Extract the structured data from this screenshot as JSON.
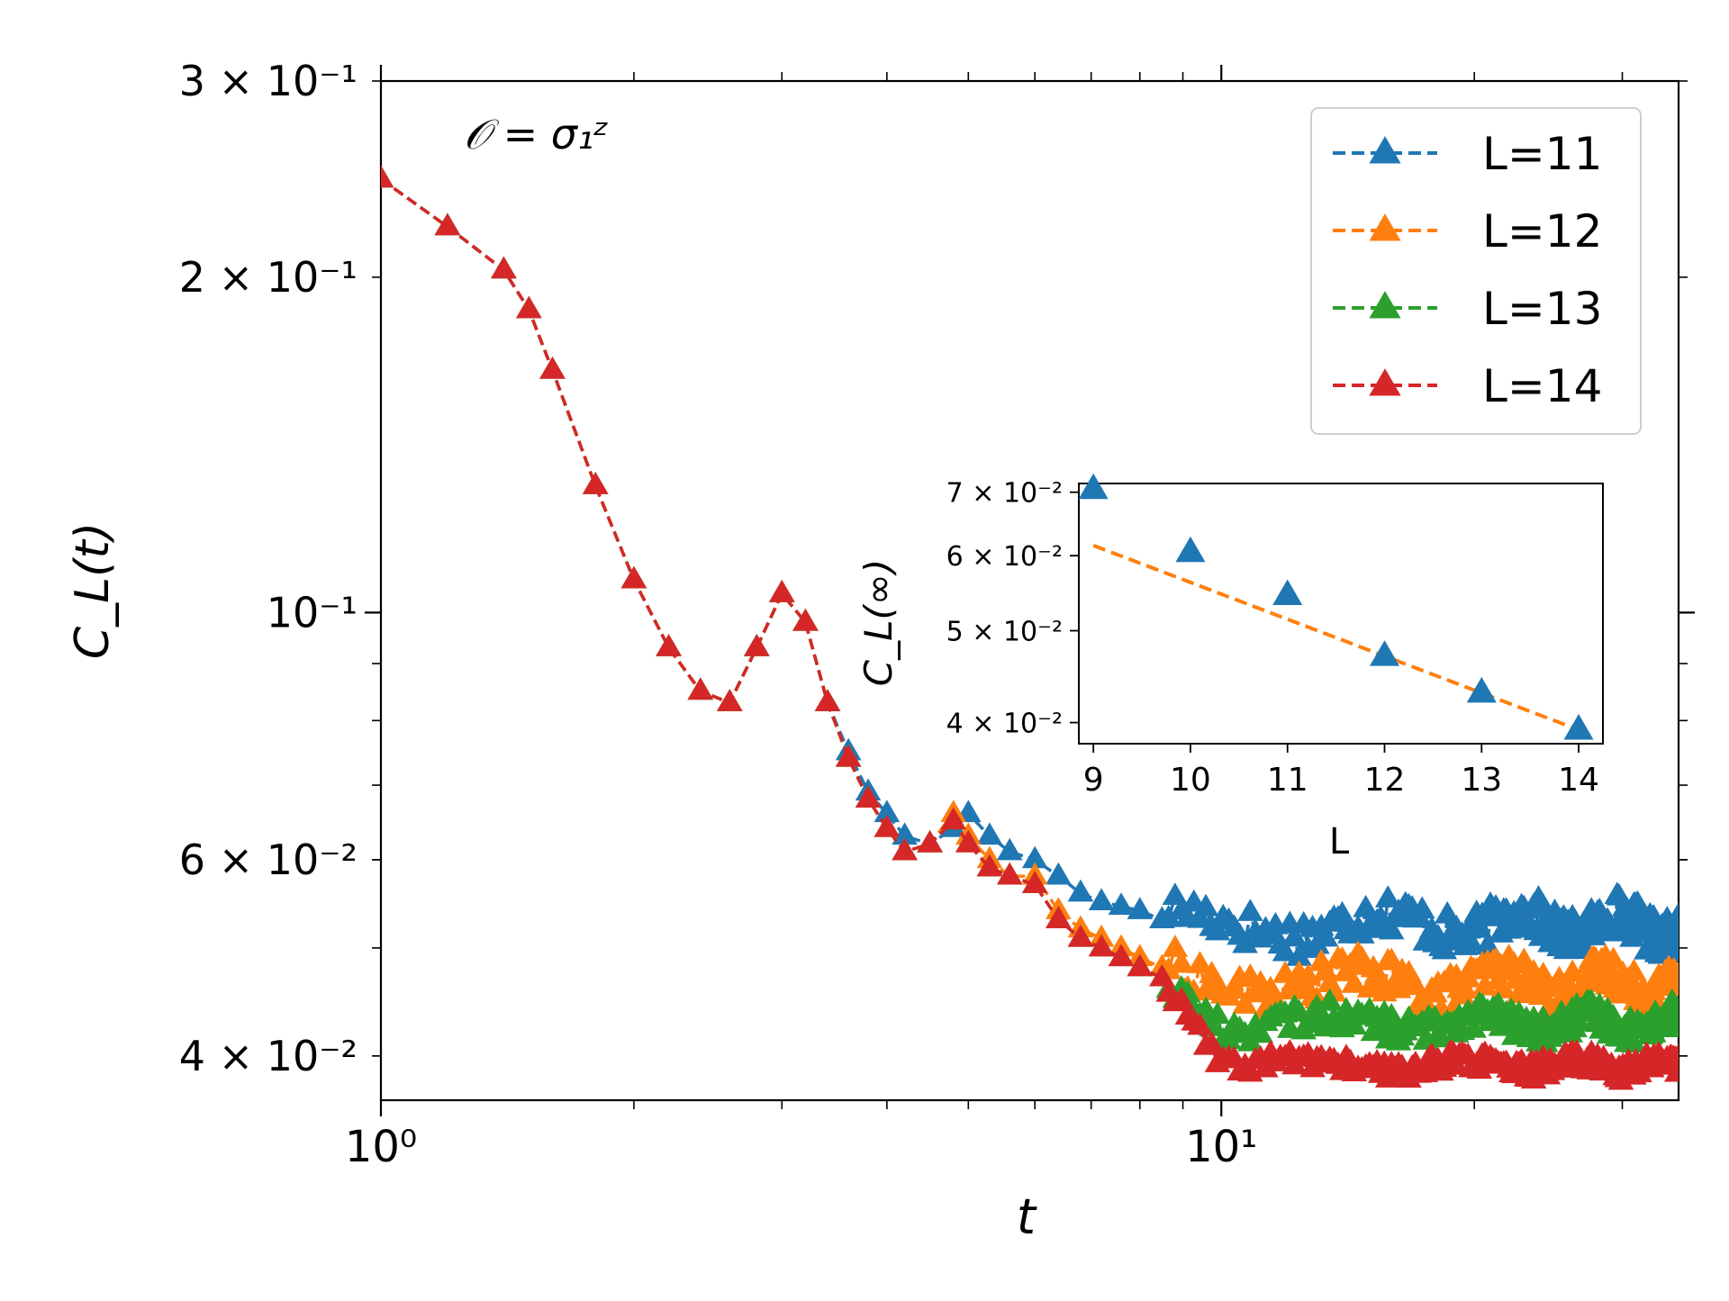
{
  "chart_data": [
    {
      "type": "line",
      "title": "",
      "annotation": "𝒪 = σ₁ᶻ",
      "xlabel": "t",
      "ylabel": "C_L(t)",
      "xscale": "log",
      "yscale": "log",
      "xlim": [
        1,
        35
      ],
      "ylim": [
        0.0365,
        0.3
      ],
      "xticks": [
        {
          "value": 1,
          "label": "10⁰"
        },
        {
          "value": 10,
          "label": "10¹"
        }
      ],
      "yticks": [
        {
          "value": 0.3,
          "label": "3 × 10⁻¹"
        },
        {
          "value": 0.2,
          "label": "2 × 10⁻¹"
        },
        {
          "value": 0.1,
          "label": "10⁻¹"
        },
        {
          "value": 0.06,
          "label": "6 × 10⁻²"
        },
        {
          "value": 0.04,
          "label": "4 × 10⁻²"
        }
      ],
      "legend_position": "top-right",
      "series": [
        {
          "name": "L=11",
          "color": "#1f77b4",
          "marker": "triangle",
          "linestyle": "dashed",
          "early": [
            [
              1.0,
              0.245
            ],
            [
              1.2,
              0.222
            ],
            [
              1.4,
              0.203
            ],
            [
              1.5,
              0.187
            ],
            [
              1.6,
              0.165
            ],
            [
              1.8,
              0.13
            ],
            [
              2.0,
              0.107
            ],
            [
              2.2,
              0.093
            ],
            [
              2.4,
              0.085
            ],
            [
              2.6,
              0.083
            ],
            [
              2.8,
              0.093
            ],
            [
              3.0,
              0.104
            ],
            [
              3.2,
              0.098
            ],
            [
              3.4,
              0.083
            ],
            [
              3.6,
              0.075
            ],
            [
              3.8,
              0.069
            ],
            [
              4.0,
              0.066
            ],
            [
              4.2,
              0.063
            ],
            [
              4.5,
              0.062
            ],
            [
              4.8,
              0.064
            ],
            [
              5.0,
              0.066
            ],
            [
              5.3,
              0.063
            ],
            [
              5.6,
              0.061
            ],
            [
              6.0,
              0.06
            ],
            [
              6.4,
              0.058
            ],
            [
              6.8,
              0.056
            ],
            [
              7.2,
              0.055
            ],
            [
              7.6,
              0.0545
            ],
            [
              8.0,
              0.054
            ],
            [
              8.5,
              0.053
            ]
          ],
          "steady": {
            "level": 0.0525,
            "amplitude": 0.0022
          }
        },
        {
          "name": "L=12",
          "color": "#ff7f0e",
          "marker": "triangle",
          "linestyle": "dashed",
          "early": [
            [
              1.0,
              0.245
            ],
            [
              1.2,
              0.222
            ],
            [
              1.4,
              0.203
            ],
            [
              1.5,
              0.187
            ],
            [
              1.6,
              0.165
            ],
            [
              1.8,
              0.13
            ],
            [
              2.0,
              0.107
            ],
            [
              2.2,
              0.093
            ],
            [
              2.4,
              0.085
            ],
            [
              2.6,
              0.083
            ],
            [
              2.8,
              0.093
            ],
            [
              3.0,
              0.104
            ],
            [
              3.2,
              0.098
            ],
            [
              3.4,
              0.083
            ],
            [
              3.6,
              0.074
            ],
            [
              3.8,
              0.068
            ],
            [
              4.0,
              0.064
            ],
            [
              4.2,
              0.061
            ],
            [
              4.5,
              0.062
            ],
            [
              4.8,
              0.066
            ],
            [
              5.0,
              0.063
            ],
            [
              5.3,
              0.06
            ],
            [
              5.6,
              0.058
            ],
            [
              6.0,
              0.058
            ],
            [
              6.4,
              0.054
            ],
            [
              6.8,
              0.052
            ],
            [
              7.2,
              0.051
            ],
            [
              7.6,
              0.05
            ],
            [
              8.0,
              0.049
            ],
            [
              8.5,
              0.048
            ]
          ],
          "steady": {
            "level": 0.0465,
            "amplitude": 0.0018
          }
        },
        {
          "name": "L=13",
          "color": "#2ca02c",
          "marker": "triangle",
          "linestyle": "dashed",
          "early": [
            [
              1.0,
              0.245
            ],
            [
              1.2,
              0.222
            ],
            [
              1.4,
              0.203
            ],
            [
              1.5,
              0.187
            ],
            [
              1.6,
              0.165
            ],
            [
              1.8,
              0.13
            ],
            [
              2.0,
              0.107
            ],
            [
              2.2,
              0.093
            ],
            [
              2.4,
              0.085
            ],
            [
              2.6,
              0.083
            ],
            [
              2.8,
              0.093
            ],
            [
              3.0,
              0.104
            ],
            [
              3.2,
              0.098
            ],
            [
              3.4,
              0.083
            ],
            [
              3.6,
              0.074
            ],
            [
              3.8,
              0.068
            ],
            [
              4.0,
              0.064
            ],
            [
              4.2,
              0.061
            ],
            [
              4.5,
              0.062
            ],
            [
              4.8,
              0.065
            ],
            [
              5.0,
              0.062
            ],
            [
              5.3,
              0.059
            ],
            [
              5.6,
              0.058
            ],
            [
              6.0,
              0.057
            ],
            [
              6.4,
              0.053
            ],
            [
              6.8,
              0.051
            ],
            [
              7.2,
              0.05
            ],
            [
              7.6,
              0.049
            ],
            [
              8.0,
              0.048
            ],
            [
              8.5,
              0.047
            ]
          ],
          "steady": {
            "level": 0.0428,
            "amplitude": 0.0012
          }
        },
        {
          "name": "L=14",
          "color": "#d62728",
          "marker": "triangle",
          "linestyle": "dashed",
          "early": [
            [
              1.0,
              0.245
            ],
            [
              1.2,
              0.222
            ],
            [
              1.4,
              0.203
            ],
            [
              1.5,
              0.187
            ],
            [
              1.6,
              0.165
            ],
            [
              1.8,
              0.13
            ],
            [
              2.0,
              0.107
            ],
            [
              2.2,
              0.093
            ],
            [
              2.4,
              0.085
            ],
            [
              2.6,
              0.083
            ],
            [
              2.8,
              0.093
            ],
            [
              3.0,
              0.104
            ],
            [
              3.2,
              0.098
            ],
            [
              3.4,
              0.083
            ],
            [
              3.6,
              0.074
            ],
            [
              3.8,
              0.068
            ],
            [
              4.0,
              0.064
            ],
            [
              4.2,
              0.061
            ],
            [
              4.5,
              0.062
            ],
            [
              4.8,
              0.065
            ],
            [
              5.0,
              0.062
            ],
            [
              5.3,
              0.059
            ],
            [
              5.6,
              0.058
            ],
            [
              6.0,
              0.057
            ],
            [
              6.4,
              0.053
            ],
            [
              6.8,
              0.051
            ],
            [
              7.2,
              0.05
            ],
            [
              7.6,
              0.049
            ],
            [
              8.0,
              0.048
            ],
            [
              8.5,
              0.047
            ]
          ],
          "steady": {
            "level": 0.0392,
            "amplitude": 0.0008
          }
        }
      ]
    },
    {
      "type": "scatter",
      "title": "",
      "xlabel": "L",
      "ylabel": "C_L(∞)",
      "yscale": "log",
      "xlim": [
        8.85,
        14.25
      ],
      "ylim": [
        0.038,
        0.0715
      ],
      "xticks": [
        "9",
        "10",
        "11",
        "12",
        "13",
        "14"
      ],
      "yticks": [
        {
          "value": 0.07,
          "label": "7 × 10⁻²"
        },
        {
          "value": 0.06,
          "label": "6 × 10⁻²"
        },
        {
          "value": 0.05,
          "label": "5 × 10⁻²"
        },
        {
          "value": 0.04,
          "label": "4 × 10⁻²"
        }
      ],
      "points": {
        "name": "C_L(∞)",
        "color": "#1f77b4",
        "marker": "triangle",
        "x": [
          9,
          10,
          11,
          12,
          13,
          14
        ],
        "y": [
          0.0705,
          0.0605,
          0.0545,
          0.047,
          0.043,
          0.0393
        ]
      },
      "fit": {
        "name": "fit",
        "color": "#ff7f0e",
        "linestyle": "dashed",
        "x": [
          9,
          14
        ],
        "y": [
          0.0615,
          0.0393
        ]
      }
    }
  ]
}
